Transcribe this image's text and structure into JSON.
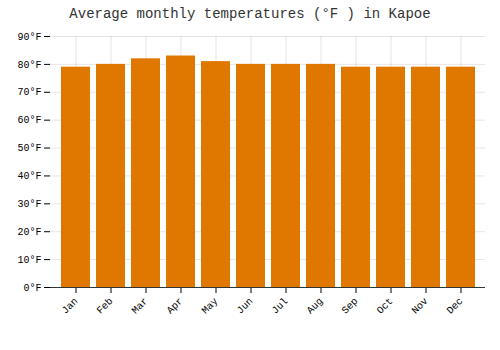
{
  "chart_data": {
    "type": "bar",
    "title": "Average monthly temperatures (°F ) in Kapoe",
    "categories": [
      "Jan",
      "Feb",
      "Mar",
      "Apr",
      "May",
      "Jun",
      "Jul",
      "Aug",
      "Sep",
      "Oct",
      "Nov",
      "Dec"
    ],
    "values": [
      79,
      80,
      82,
      83,
      81,
      80,
      80,
      80,
      79,
      79,
      79,
      79
    ],
    "color": "#E07800",
    "ylim": [
      0,
      90
    ],
    "yticks": [
      {
        "value": 0,
        "label": "0°F"
      },
      {
        "value": 10,
        "label": "10°F"
      },
      {
        "value": 20,
        "label": "20°F"
      },
      {
        "value": 30,
        "label": "30°F"
      },
      {
        "value": 40,
        "label": "40°F"
      },
      {
        "value": 50,
        "label": "50°F"
      },
      {
        "value": 60,
        "label": "60°F"
      },
      {
        "value": 70,
        "label": "70°F"
      },
      {
        "value": 80,
        "label": "80°F"
      },
      {
        "value": 90,
        "label": "90°F"
      }
    ],
    "grid": true
  }
}
